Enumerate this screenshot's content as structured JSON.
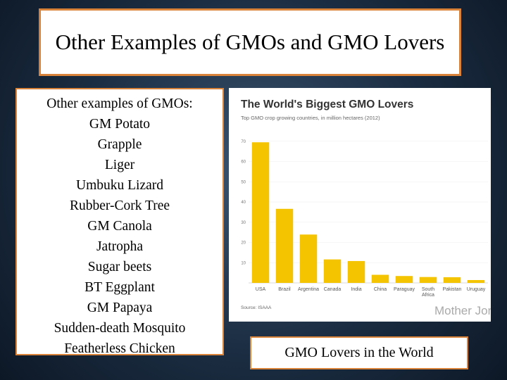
{
  "title": "Other Examples of GMOs and GMO Lovers",
  "list": {
    "heading": "Other examples of GMOs:",
    "items": [
      "GM Potato",
      "Grapple",
      "Liger",
      "Umbuku Lizard",
      "Rubber-Cork Tree",
      "GM Canola",
      "Jatropha",
      "Sugar beets",
      "BT Eggplant",
      "GM Papaya",
      "Sudden-death Mosquito",
      "Featherless Chicken"
    ]
  },
  "caption": "GMO Lovers in the World",
  "chart_data": {
    "type": "bar",
    "title": "The World's Biggest GMO Lovers",
    "subtitle": "Top GMO crop growing countries, in million hectares (2012)",
    "source": "Source: ISAAA",
    "brand": "Mother Jones",
    "categories": [
      "USA",
      "Brazil",
      "Argentina",
      "Canada",
      "India",
      "China",
      "Paraguay",
      "South Africa",
      "Pakistan",
      "Uruguay"
    ],
    "values": [
      69.5,
      36.6,
      23.9,
      11.6,
      10.8,
      4,
      3.4,
      2.9,
      2.8,
      1.4
    ],
    "color": "#f5c400",
    "ylim": [
      0,
      72
    ],
    "yticks": [
      10,
      20,
      30,
      40,
      50,
      60,
      70
    ],
    "grid": true
  }
}
